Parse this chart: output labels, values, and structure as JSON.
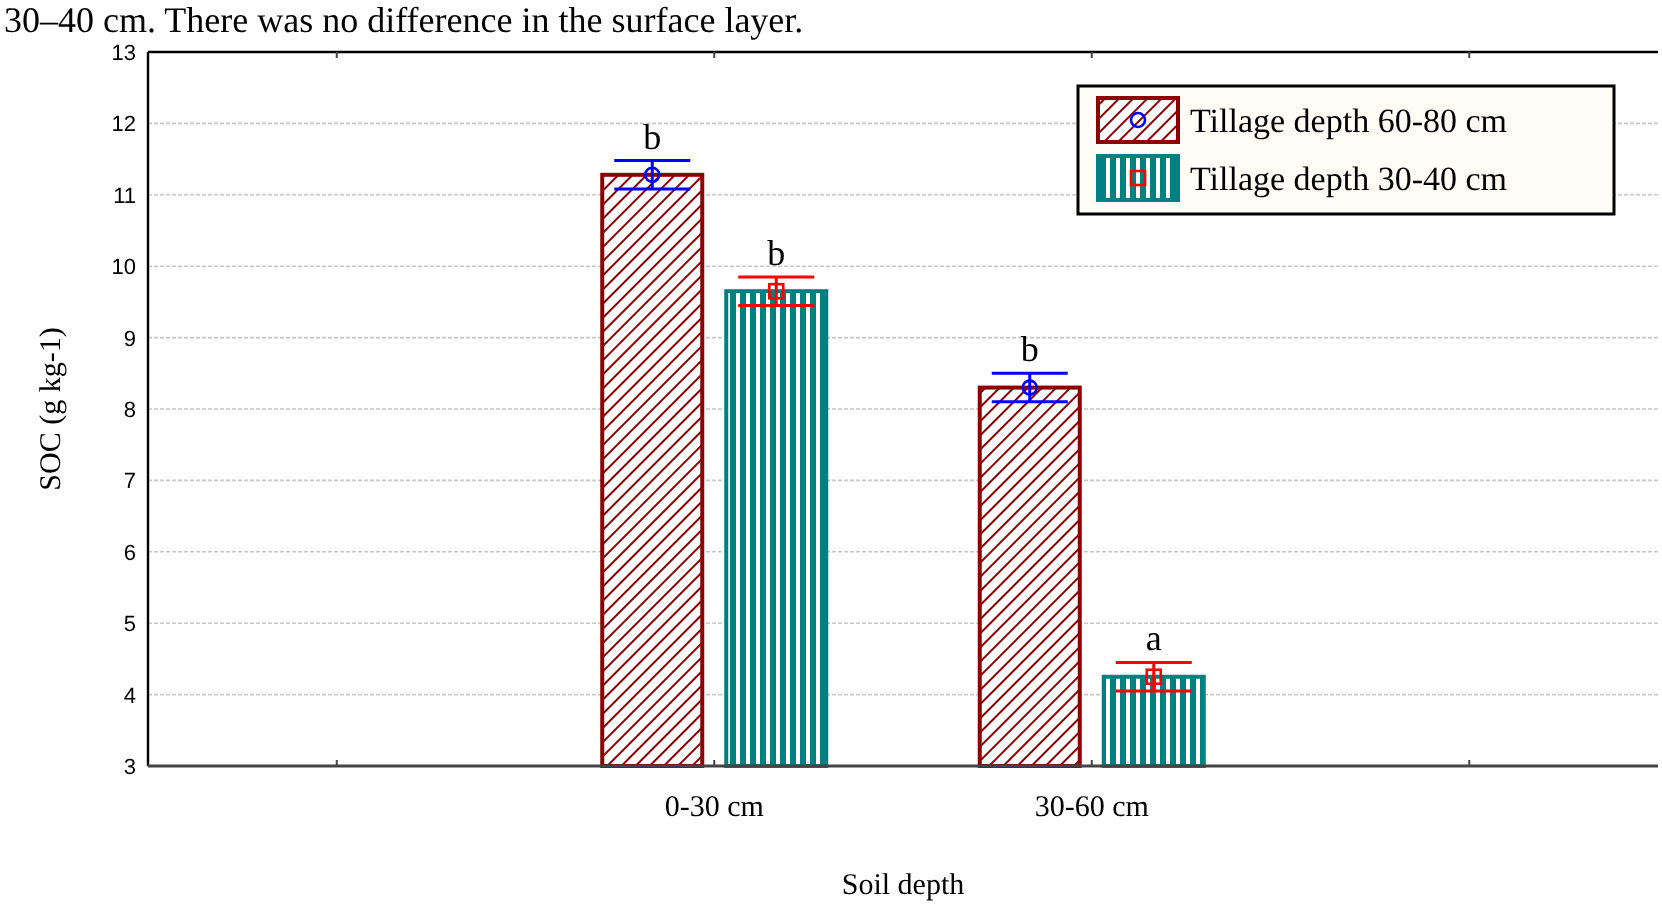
{
  "chart_data": {
    "type": "bar",
    "xlabel": "Soil depth",
    "ylabel": "SOC (g kg-1)",
    "categories": [
      null,
      "0-30 cm",
      "30-60 cm",
      null
    ],
    "series": [
      {
        "name": "Tillage depth 60-80 cm",
        "color": "#8b0000",
        "values": [
          null,
          11.28,
          8.3,
          null
        ],
        "errors": [
          null,
          0.2,
          0.2,
          null
        ],
        "marker": "circle"
      },
      {
        "name": "Tillage depth 30-40 cm",
        "color": "#008080",
        "values": [
          null,
          9.65,
          4.25,
          null
        ],
        "errors": [
          null,
          0.2,
          0.2,
          null
        ],
        "marker": "square"
      }
    ],
    "ylim": [
      3,
      13
    ],
    "yticks": [
      3,
      4,
      5,
      6,
      7,
      8,
      9,
      10,
      11,
      12,
      13
    ],
    "grid": "y",
    "legend": "top right",
    "annotations": [
      "30–40 cm. There was no difference in the surface layer.",
      "b",
      "b",
      "b",
      "a"
    ]
  }
}
